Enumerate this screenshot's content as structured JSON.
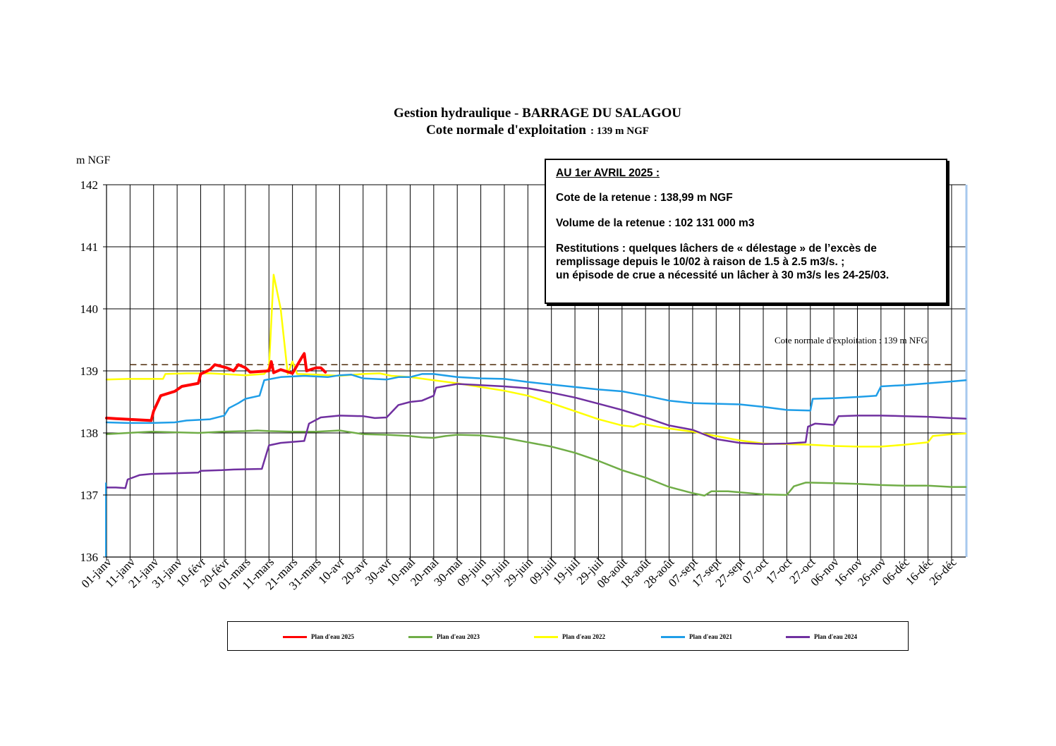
{
  "title_line1": "Gestion hydraulique - BARRAGE DU SALAGOU",
  "title_line2_main": "Cote normale d'exploitation",
  "title_line2_small": ": 139 m NGF",
  "info": {
    "header": "AU 1er AVRIL 2025 :",
    "cote": "Cote de la retenue : 138,99 m NGF",
    "volume": "Volume de la retenue : 102 131 000 m3",
    "restitutions_line1": "Restitutions : quelques lâchers de « délestage » de l’excès de",
    "restitutions_line2": "remplissage depuis le 10/02 à raison de 1.5 à 2.5 m3/s. ;",
    "restitutions_line3": "un épisode de crue a nécessité un lâcher à 30 m3/s les 24-25/03."
  },
  "chart_data": {
    "type": "line",
    "ylabel": "m NGF",
    "ylim": [
      136,
      142
    ],
    "yticks": [
      "136",
      "137",
      "138",
      "139",
      "140",
      "141",
      "142"
    ],
    "xlim": [
      1,
      366
    ],
    "x_unit": "day of year",
    "xtick_days": [
      1,
      11,
      21,
      31,
      41,
      51,
      60,
      70,
      80,
      90,
      100,
      110,
      120,
      130,
      140,
      150,
      160,
      170,
      180,
      190,
      200,
      210,
      220,
      230,
      240,
      250,
      260,
      270,
      280,
      290,
      300,
      310,
      320,
      330,
      340,
      350,
      360
    ],
    "xticks": [
      "01-janv",
      "11-janv",
      "21-janv",
      "31-janv",
      "10-févr",
      "20-févr",
      "01-mars",
      "11-mars",
      "21-mars",
      "31-mars",
      "10-avr",
      "20-avr",
      "30-avr",
      "10-mai",
      "20-mai",
      "30-mai",
      "09-juin",
      "19-juin",
      "29-juin",
      "09-juil",
      "19-juil",
      "29-juil",
      "08-août",
      "18-août",
      "28-août",
      "07-sept",
      "17-sept",
      "27-sept",
      "07-oct",
      "17-oct",
      "27-oct",
      "06-nov",
      "16-nov",
      "26-nov",
      "06-déc",
      "16-déc",
      "26-déc"
    ],
    "grid": true,
    "reference_line": {
      "label": "Cote normale d'exploitation : 139 m NFG",
      "value": 139.1,
      "color": "#5a3a1a"
    },
    "series": [
      {
        "name": "Plan d'eau 2023",
        "color": "#70ad47",
        "width": 2.5,
        "points": [
          [
            1,
            137.98
          ],
          [
            10,
            138.0
          ],
          [
            20,
            138.02
          ],
          [
            30,
            138.01
          ],
          [
            40,
            138.0
          ],
          [
            50,
            138.02
          ],
          [
            60,
            138.03
          ],
          [
            65,
            138.04
          ],
          [
            70,
            138.03
          ],
          [
            80,
            138.02
          ],
          [
            90,
            138.02
          ],
          [
            95,
            138.03
          ],
          [
            100,
            138.04
          ],
          [
            110,
            137.98
          ],
          [
            120,
            137.97
          ],
          [
            130,
            137.95
          ],
          [
            135,
            137.93
          ],
          [
            140,
            137.92
          ],
          [
            145,
            137.95
          ],
          [
            150,
            137.97
          ],
          [
            160,
            137.96
          ],
          [
            170,
            137.92
          ],
          [
            180,
            137.85
          ],
          [
            190,
            137.78
          ],
          [
            200,
            137.68
          ],
          [
            210,
            137.55
          ],
          [
            220,
            137.4
          ],
          [
            230,
            137.28
          ],
          [
            240,
            137.13
          ],
          [
            250,
            137.03
          ],
          [
            255,
            136.99
          ],
          [
            258,
            137.06
          ],
          [
            265,
            137.06
          ],
          [
            280,
            137.01
          ],
          [
            290,
            137.0
          ],
          [
            293,
            137.14
          ],
          [
            298,
            137.2
          ],
          [
            310,
            137.19
          ],
          [
            320,
            137.18
          ],
          [
            330,
            137.16
          ],
          [
            340,
            137.15
          ],
          [
            350,
            137.15
          ],
          [
            360,
            137.13
          ],
          [
            366,
            137.13
          ]
        ]
      },
      {
        "name": "Plan d'eau 2022",
        "color": "#ffff00",
        "width": 2.5,
        "points": [
          [
            1,
            138.86
          ],
          [
            10,
            138.87
          ],
          [
            20,
            138.87
          ],
          [
            25,
            138.87
          ],
          [
            26,
            138.95
          ],
          [
            35,
            138.96
          ],
          [
            45,
            138.96
          ],
          [
            55,
            138.94
          ],
          [
            60,
            138.93
          ],
          [
            68,
            138.95
          ],
          [
            70,
            139.05
          ],
          [
            72,
            140.55
          ],
          [
            75,
            140.0
          ],
          [
            78,
            138.95
          ],
          [
            80,
            139.15
          ],
          [
            82,
            138.95
          ],
          [
            90,
            138.94
          ],
          [
            100,
            138.92
          ],
          [
            110,
            138.95
          ],
          [
            117,
            138.96
          ],
          [
            122,
            138.92
          ],
          [
            130,
            138.9
          ],
          [
            140,
            138.85
          ],
          [
            150,
            138.8
          ],
          [
            160,
            138.74
          ],
          [
            170,
            138.68
          ],
          [
            180,
            138.6
          ],
          [
            190,
            138.48
          ],
          [
            200,
            138.35
          ],
          [
            210,
            138.22
          ],
          [
            220,
            138.12
          ],
          [
            225,
            138.1
          ],
          [
            228,
            138.15
          ],
          [
            235,
            138.1
          ],
          [
            240,
            138.07
          ],
          [
            250,
            138.02
          ],
          [
            260,
            137.95
          ],
          [
            270,
            137.88
          ],
          [
            280,
            137.83
          ],
          [
            300,
            137.81
          ],
          [
            310,
            137.79
          ],
          [
            320,
            137.78
          ],
          [
            330,
            137.78
          ],
          [
            340,
            137.81
          ],
          [
            350,
            137.85
          ],
          [
            352,
            137.95
          ],
          [
            360,
            137.98
          ],
          [
            366,
            137.99
          ]
        ]
      },
      {
        "name": "Plan d'eau 2021",
        "color": "#1f9ee8",
        "width": 2.5,
        "points": [
          [
            1,
            138.17
          ],
          [
            10,
            138.16
          ],
          [
            20,
            138.16
          ],
          [
            30,
            138.17
          ],
          [
            35,
            138.2
          ],
          [
            45,
            138.22
          ],
          [
            51,
            138.28
          ],
          [
            53,
            138.4
          ],
          [
            57,
            138.48
          ],
          [
            60,
            138.55
          ],
          [
            66,
            138.6
          ],
          [
            68,
            138.85
          ],
          [
            75,
            138.9
          ],
          [
            85,
            138.92
          ],
          [
            95,
            138.9
          ],
          [
            100,
            138.93
          ],
          [
            105,
            138.94
          ],
          [
            110,
            138.88
          ],
          [
            120,
            138.86
          ],
          [
            125,
            138.9
          ],
          [
            130,
            138.9
          ],
          [
            135,
            138.95
          ],
          [
            140,
            138.95
          ],
          [
            150,
            138.9
          ],
          [
            160,
            138.88
          ],
          [
            170,
            138.87
          ],
          [
            180,
            138.82
          ],
          [
            190,
            138.78
          ],
          [
            200,
            138.74
          ],
          [
            210,
            138.7
          ],
          [
            220,
            138.67
          ],
          [
            230,
            138.6
          ],
          [
            240,
            138.52
          ],
          [
            250,
            138.48
          ],
          [
            260,
            138.47
          ],
          [
            270,
            138.46
          ],
          [
            280,
            138.42
          ],
          [
            290,
            138.37
          ],
          [
            300,
            138.36
          ],
          [
            301,
            138.55
          ],
          [
            310,
            138.56
          ],
          [
            320,
            138.58
          ],
          [
            328,
            138.6
          ],
          [
            330,
            138.75
          ],
          [
            340,
            138.77
          ],
          [
            350,
            138.8
          ],
          [
            360,
            138.83
          ],
          [
            366,
            138.85
          ]
        ]
      },
      {
        "name": "Plan d'eau 2024",
        "color": "#7030a0",
        "width": 2.5,
        "points": [
          [
            1,
            137.12
          ],
          [
            5,
            137.12
          ],
          [
            9,
            137.11
          ],
          [
            10,
            137.25
          ],
          [
            15,
            137.32
          ],
          [
            20,
            137.34
          ],
          [
            30,
            137.35
          ],
          [
            40,
            137.36
          ],
          [
            41,
            137.39
          ],
          [
            50,
            137.4
          ],
          [
            55,
            137.41
          ],
          [
            67,
            137.42
          ],
          [
            70,
            137.8
          ],
          [
            75,
            137.84
          ],
          [
            85,
            137.87
          ],
          [
            87,
            138.15
          ],
          [
            92,
            138.25
          ],
          [
            100,
            138.28
          ],
          [
            110,
            138.27
          ],
          [
            115,
            138.24
          ],
          [
            120,
            138.25
          ],
          [
            125,
            138.45
          ],
          [
            130,
            138.5
          ],
          [
            135,
            138.52
          ],
          [
            140,
            138.6
          ],
          [
            141,
            138.73
          ],
          [
            150,
            138.79
          ],
          [
            160,
            138.77
          ],
          [
            170,
            138.75
          ],
          [
            180,
            138.72
          ],
          [
            190,
            138.65
          ],
          [
            200,
            138.57
          ],
          [
            210,
            138.47
          ],
          [
            220,
            138.37
          ],
          [
            230,
            138.25
          ],
          [
            240,
            138.12
          ],
          [
            250,
            138.05
          ],
          [
            260,
            137.9
          ],
          [
            270,
            137.84
          ],
          [
            280,
            137.82
          ],
          [
            290,
            137.83
          ],
          [
            298,
            137.85
          ],
          [
            299,
            138.1
          ],
          [
            302,
            138.15
          ],
          [
            310,
            138.13
          ],
          [
            312,
            138.27
          ],
          [
            320,
            138.28
          ],
          [
            330,
            138.28
          ],
          [
            340,
            138.27
          ],
          [
            350,
            138.26
          ],
          [
            360,
            138.24
          ],
          [
            366,
            138.23
          ]
        ]
      },
      {
        "name": "Plan d'eau 2025",
        "color": "#ff0000",
        "width": 4,
        "points": [
          [
            1,
            138.24
          ],
          [
            5,
            138.23
          ],
          [
            10,
            138.22
          ],
          [
            15,
            138.21
          ],
          [
            20,
            138.2
          ],
          [
            21,
            138.35
          ],
          [
            24,
            138.6
          ],
          [
            30,
            138.67
          ],
          [
            33,
            138.75
          ],
          [
            40,
            138.8
          ],
          [
            41,
            138.95
          ],
          [
            45,
            139.02
          ],
          [
            47,
            139.1
          ],
          [
            52,
            139.05
          ],
          [
            55,
            139.0
          ],
          [
            57,
            139.1
          ],
          [
            60,
            139.05
          ],
          [
            62,
            138.98
          ],
          [
            70,
            139.0
          ],
          [
            71,
            139.15
          ],
          [
            72,
            138.97
          ],
          [
            75,
            139.02
          ],
          [
            80,
            138.96
          ],
          [
            84,
            139.22
          ],
          [
            85,
            139.28
          ],
          [
            86,
            139.0
          ],
          [
            90,
            139.05
          ],
          [
            92,
            139.05
          ],
          [
            94,
            138.98
          ]
        ]
      }
    ],
    "legend": [
      {
        "label": "Plan d'eau 2025",
        "color": "#ff0000"
      },
      {
        "label": "Plan d'eau 2023",
        "color": "#70ad47"
      },
      {
        "label": "Plan d'eau 2022",
        "color": "#ffff00"
      },
      {
        "label": "Plan d'eau 2021",
        "color": "#1f9ee8"
      },
      {
        "label": "Plan d'eau 2024",
        "color": "#7030a0"
      }
    ]
  }
}
